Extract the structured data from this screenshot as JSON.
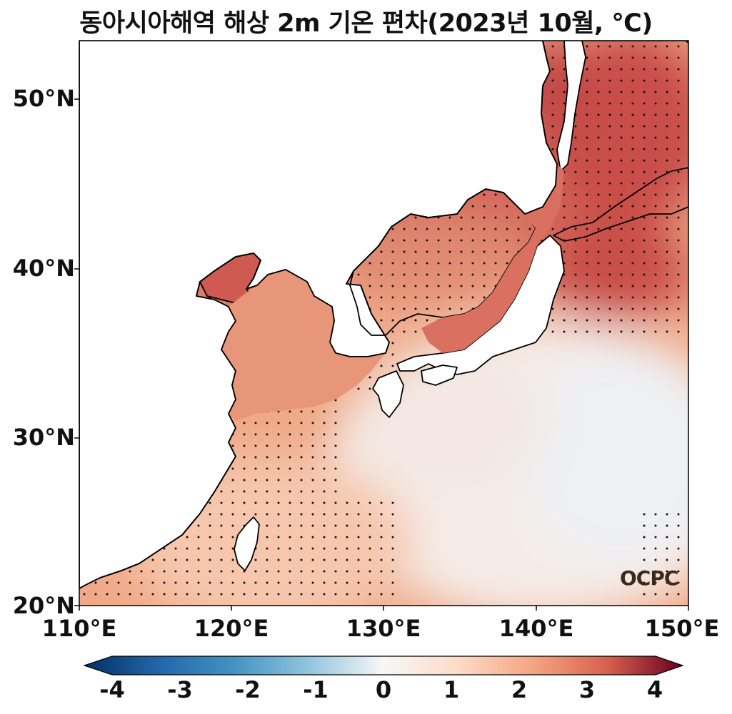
{
  "title": "동아시아해역 해상 2m 기온 편차(2023년 10월, ℃)",
  "map": {
    "lon_range": [
      110,
      150
    ],
    "lat_range": [
      20,
      53.5
    ],
    "lat_ticks": [
      "50°N",
      "40°N",
      "30°N",
      "20°N"
    ],
    "lon_ticks": [
      "110°E",
      "120°E",
      "130°E",
      "140°E",
      "150°E"
    ],
    "land_color": "#ffffff",
    "coastline_color": "#000000",
    "stipple": "significance dots over warm anomalies"
  },
  "colorbar": {
    "ticks": [
      "-4",
      "-3",
      "-2",
      "-1",
      "0",
      "1",
      "2",
      "3",
      "4"
    ],
    "range": [
      -4,
      4
    ],
    "colormap": "RdBu_r",
    "extend": "both",
    "colors": [
      "#053061",
      "#2166ac",
      "#4393c3",
      "#92c5de",
      "#f7f7f7",
      "#fddbc7",
      "#f4a582",
      "#d6604d",
      "#b2182b",
      "#67001f"
    ]
  },
  "logo": "OCPC"
}
